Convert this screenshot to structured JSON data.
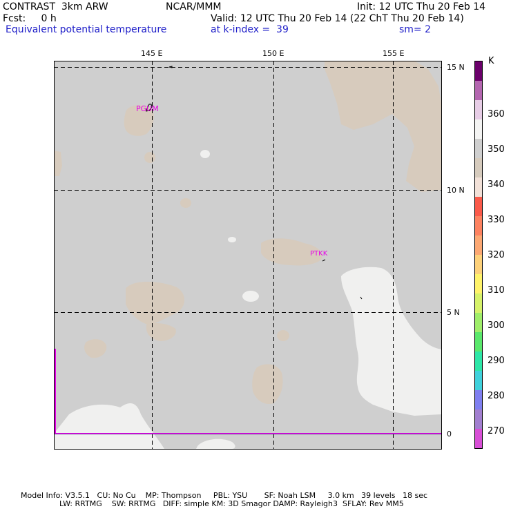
{
  "header": {
    "title_left": "CONTRAST  3km ARW",
    "fcst": "Fcst:     0 h",
    "center": "NCAR/MMM",
    "init": "Init: 12 UTC Thu 20 Feb 14",
    "valid": "Valid: 12 UTC Thu 20 Feb 14 (22 ChT Thu 20 Feb 14)",
    "field": "Equivalent potential temperature",
    "level": "at k-index =  39",
    "smooth": "sm= 2"
  },
  "map": {
    "lon_labels": [
      "145 E",
      "150 E",
      "155 E"
    ],
    "lat_labels": [
      "15 N",
      "10 N",
      "5 N",
      "0"
    ],
    "stations": [
      "PGUM",
      "PTKK"
    ],
    "colors": {
      "background": "#cfcfcf",
      "tan": "#d7cbbd",
      "light": "#f0f0ef",
      "boundary": "#e600e6"
    }
  },
  "colorbar": {
    "unit": "K",
    "labels": [
      "360",
      "350",
      "340",
      "330",
      "320",
      "310",
      "300",
      "290",
      "280",
      "270"
    ],
    "colors": [
      "#d84fd6",
      "#a27fd0",
      "#7f7ff0",
      "#3fd1dc",
      "#2de7a8",
      "#5ae86c",
      "#9fee6a",
      "#d6f26a",
      "#fff36a",
      "#fdd17a",
      "#fca873",
      "#fd8260",
      "#fa5a4a",
      "#f2e1d8",
      "#d6cbbd",
      "#cfcfcf",
      "#f4f4f3",
      "#e7cde6",
      "#b466b0",
      "#6b006b"
    ]
  },
  "footer": {
    "line1": "Model Info: V3.5.1   CU: No Cu    MP: Thompson     PBL: YSU       SF: Noah LSM     3.0 km   39 levels   18 sec",
    "line2": "                LW: RRTMG    SW: RRTMG   DIFF: simple KM: 3D Smagor DAMP: Rayleigh3  SFLAY: Rev MM5"
  }
}
